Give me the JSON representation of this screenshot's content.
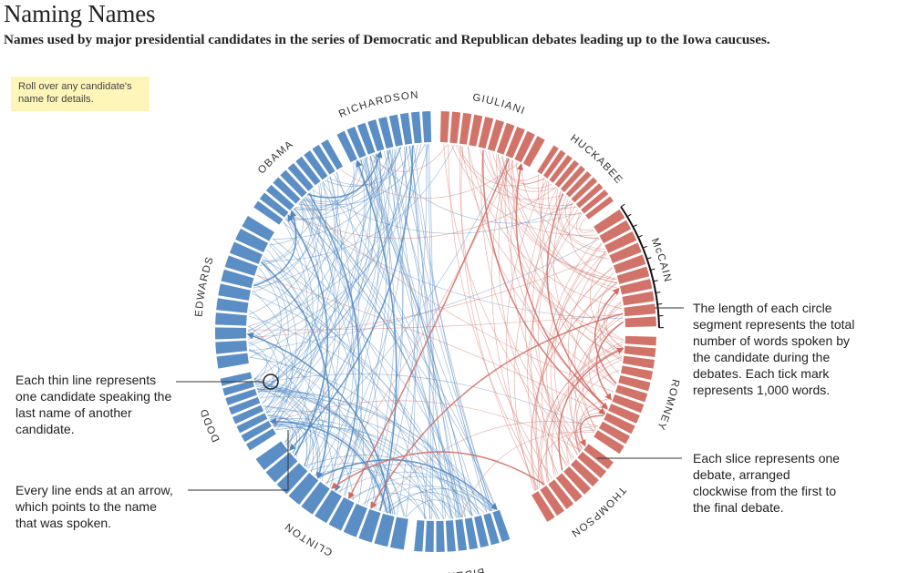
{
  "header": {
    "title": "Naming Names",
    "subtitle": "Names used by major presidential candidates in the series of Democratic and Republican debates leading up to the Iowa caucuses."
  },
  "hint": {
    "text": "Roll over any candidate's name for details."
  },
  "annotations": {
    "thin_line": "Each thin line represents one candidate speaking the last name of another candidate.",
    "arrow": "Every line ends at an arrow, which points to the name that was spoken.",
    "segment_length": "The length of each circle segment represents the total number of words spoken by the candidate during the debates. Each tick mark represents 1,000 words.",
    "slice": "Each slice represents one debate, arranged clockwise from the first to the final debate."
  },
  "colors": {
    "democrat": "#5b8ec4",
    "republican": "#d2736a",
    "democrat_line": "#4f86c0",
    "republican_line": "#d06a60"
  },
  "candidates": [
    {
      "name": "RICHARDSON",
      "party": "D",
      "start": -27,
      "end": -1,
      "slices": 9
    },
    {
      "name": "GIULIANI",
      "party": "R",
      "start": 1,
      "end": 30,
      "slices": 10
    },
    {
      "name": "HUCKABEE",
      "party": "R",
      "start": 32,
      "end": 54,
      "slices": 10
    },
    {
      "name": "McCAIN",
      "party": "R",
      "start": 56,
      "end": 89,
      "slices": 10,
      "selected": true
    },
    {
      "name": "ROMNEY",
      "party": "R",
      "start": 91,
      "end": 124,
      "slices": 11
    },
    {
      "name": "THOMPSON",
      "party": "R",
      "start": 126,
      "end": 150,
      "slices": 8
    },
    {
      "name": "BIDEN",
      "party": "D",
      "start": 160,
      "end": 186,
      "slices": 9
    },
    {
      "name": "CLINTON",
      "party": "D",
      "start": 188,
      "end": 235,
      "slices": 11
    },
    {
      "name": "DODD",
      "party": "D",
      "start": 237,
      "end": 258,
      "slices": 8
    },
    {
      "name": "EDWARDS",
      "party": "D",
      "start": 260,
      "end": 302,
      "slices": 11
    },
    {
      "name": "OBAMA",
      "party": "D",
      "start": 304,
      "end": 331,
      "slices": 10
    }
  ]
}
